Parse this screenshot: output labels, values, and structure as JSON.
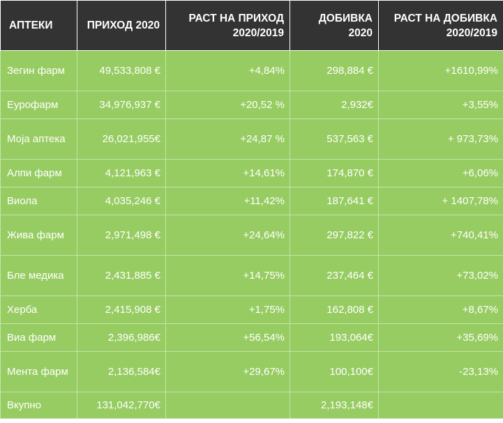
{
  "table": {
    "headers": [
      "АПТЕКИ",
      "ПРИХОД 2020",
      "РАСТ НА ПРИХОД 2020/2019",
      "ДОБИВКА 2020",
      "РАСТ НА ДОБИВКА 2020/2019"
    ],
    "rows": [
      [
        "Зегин фарм",
        "49,533,808 €",
        "+4,84%",
        "298,884 €",
        "+1610,99%"
      ],
      [
        "Еурофарм",
        "34,976,937 €",
        "+20,52 %",
        "2,932€",
        "+3,55%"
      ],
      [
        "Моја аптека",
        "26,021,955€",
        "+24,87 %",
        "537,563 €",
        "+ 973,73%"
      ],
      [
        "Алпи фарм",
        "4,121,963 €",
        "+14,61%",
        "174,870 €",
        "+6,06%"
      ],
      [
        "Виола",
        "4,035,246 €",
        "+11,42%",
        "187,641 €",
        "+ 1407,78%"
      ],
      [
        "Жива фарм",
        "2,971,498 €",
        "+24,64%",
        "297,822 €",
        "+740,41%"
      ],
      [
        "Бле медика",
        "2,431,885 €",
        "+14,75%",
        "237,464 €",
        "+73,02%"
      ],
      [
        "Херба",
        "2,415,908 €",
        "+1,75%",
        "162,808 €",
        "+8,67%"
      ],
      [
        "Виа фарм",
        "2,396,986€",
        "+56,54%",
        "193,064€",
        "+35,69%"
      ],
      [
        "Мента фарм",
        "2,136,584€",
        "+29,67%",
        "100,100€",
        "-23,13%"
      ],
      [
        "Вкупно",
        "131,042,770€",
        "",
        "2,193,148€",
        ""
      ]
    ]
  },
  "colors": {
    "header_bg": "#333333",
    "row_bg": "#97cc62",
    "text": "#ffffff"
  }
}
